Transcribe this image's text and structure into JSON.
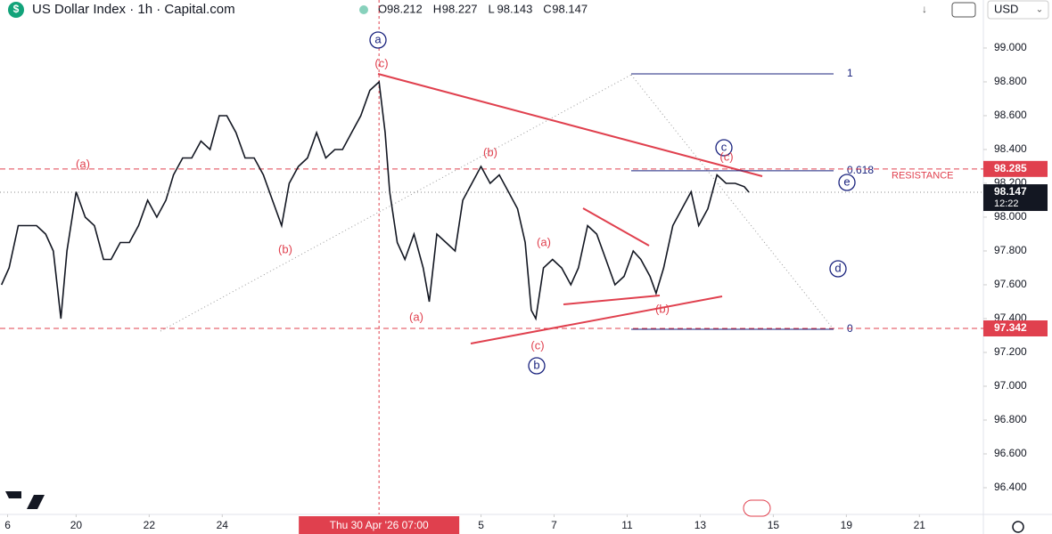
{
  "chart_data": {
    "type": "line",
    "title": "US Dollar Index · 1h · Capital.com",
    "ohlc": [
      {
        "label": "O",
        "value": 98.212
      },
      {
        "label": "H",
        "value": 98.227
      },
      {
        "label": "L",
        "value": 98.143
      },
      {
        "label": "C",
        "value": 98.147
      }
    ],
    "currency": "USD",
    "x": [
      -4,
      1,
      7,
      13,
      19,
      25,
      30,
      35,
      39,
      45,
      51,
      57,
      63,
      68,
      74,
      80,
      86,
      92,
      98,
      104,
      109,
      115,
      121,
      127,
      133,
      139,
      144,
      150,
      156,
      162,
      168,
      174,
      180,
      185,
      191,
      197,
      203,
      209,
      215,
      220,
      226,
      232,
      238,
      244,
      248,
      251,
      256,
      261,
      267,
      273,
      277,
      282,
      288,
      294,
      299,
      305,
      311,
      317,
      323,
      329,
      335,
      340,
      344,
      347,
      352,
      358,
      364,
      370,
      375,
      381,
      387,
      393,
      399,
      405,
      411,
      416,
      422,
      426,
      431,
      437,
      443,
      449,
      454,
      460,
      466,
      472,
      478,
      484,
      487
    ],
    "series": [
      {
        "name": "DXY",
        "color": "#131722",
        "values": [
          97.6,
          97.7,
          97.95,
          97.95,
          97.95,
          97.9,
          97.8,
          97.4,
          97.8,
          98.15,
          98.0,
          97.95,
          97.75,
          97.75,
          97.85,
          97.85,
          97.95,
          98.1,
          98.0,
          98.1,
          98.25,
          98.35,
          98.35,
          98.45,
          98.4,
          98.6,
          98.6,
          98.5,
          98.35,
          98.35,
          98.25,
          98.1,
          97.95,
          98.2,
          98.3,
          98.35,
          98.5,
          98.35,
          98.4,
          98.4,
          98.5,
          98.6,
          98.75,
          98.8,
          98.5,
          98.15,
          97.85,
          97.75,
          97.9,
          97.7,
          97.5,
          97.9,
          97.85,
          97.8,
          98.1,
          98.2,
          98.3,
          98.2,
          98.25,
          98.15,
          98.05,
          97.85,
          97.45,
          97.4,
          97.7,
          97.75,
          97.7,
          97.6,
          97.7,
          97.95,
          97.9,
          97.75,
          97.6,
          97.65,
          97.8,
          97.75,
          97.65,
          97.55,
          97.7,
          97.95,
          98.05,
          98.15,
          97.95,
          98.05,
          98.25,
          98.2,
          98.2,
          98.18,
          98.147
        ]
      }
    ],
    "xlim": [
      -5,
      641
    ],
    "xticks": [
      {
        "value": 0,
        "label": "6"
      },
      {
        "value": 45,
        "label": "20"
      },
      {
        "value": 93,
        "label": "22"
      },
      {
        "value": 141,
        "label": "24"
      },
      {
        "value": 311,
        "label": "5"
      },
      {
        "value": 359,
        "label": "7"
      },
      {
        "value": 407,
        "label": "11"
      },
      {
        "value": 455,
        "label": "13"
      },
      {
        "value": 503,
        "label": "15"
      },
      {
        "value": 551,
        "label": "19"
      },
      {
        "value": 599,
        "label": "21"
      }
    ],
    "ylim": [
      96.242,
      99.284
    ],
    "yticks": [
      {
        "value": 96.4,
        "label": "96.400"
      },
      {
        "value": 96.6,
        "label": "96.600"
      },
      {
        "value": 96.8,
        "label": "96.800"
      },
      {
        "value": 97.0,
        "label": "97.000"
      },
      {
        "value": 97.2,
        "label": "97.200"
      },
      {
        "value": 97.4,
        "label": "97.400"
      },
      {
        "value": 97.6,
        "label": "97.600"
      },
      {
        "value": 97.8,
        "label": "97.800"
      },
      {
        "value": 98.0,
        "label": "98.000"
      },
      {
        "value": 98.2,
        "label": "98.200"
      },
      {
        "value": 98.4,
        "label": "98.400"
      },
      {
        "value": 98.6,
        "label": "98.600"
      },
      {
        "value": 98.8,
        "label": "98.800"
      },
      {
        "value": 99.0,
        "label": "99.000"
      }
    ],
    "grid": false,
    "crosshair": {
      "x": 244,
      "label": "Thu 30 Apr '26  07:00"
    },
    "levels": [
      98.285,
      97.342
    ],
    "last_price_timer": "12:22",
    "resistance_label": "RESISTANCE",
    "fib_levels": [
      {
        "value": 98.847,
        "label": "1"
      },
      {
        "value": 98.274,
        "label": "0.618"
      },
      {
        "value": 97.337,
        "label": "0"
      }
    ],
    "annotations": [
      "a",
      "(c)",
      "(a)",
      "(b)",
      "(b)",
      "(a)",
      "(a)",
      "(c)",
      "b",
      "(b)",
      "c",
      "(c)",
      "e",
      "d"
    ]
  }
}
